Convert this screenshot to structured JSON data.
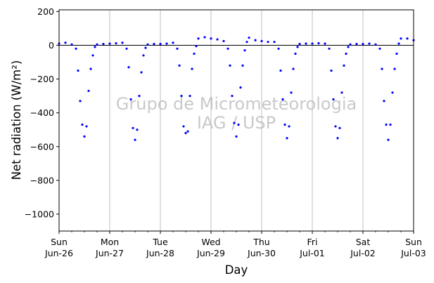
{
  "chart_data": {
    "type": "scatter",
    "xlabel": "Day",
    "ylabel": "Net radiation (W/m²)",
    "ylim": [
      -1100,
      210
    ],
    "xlim": [
      "2022-06-26",
      "2022-07-03"
    ],
    "yticks": [
      200,
      0,
      -200,
      -400,
      -600,
      -800,
      -1000
    ],
    "ytick_labels": [
      "200",
      "0",
      "−200",
      "−400",
      "−600",
      "−800",
      "−1000"
    ],
    "xticks": [
      {
        "date": "2022-06-26",
        "weekday": "Sun",
        "date_label": "Jun-26"
      },
      {
        "date": "2022-06-27",
        "weekday": "Mon",
        "date_label": "Jun-27"
      },
      {
        "date": "2022-06-28",
        "weekday": "Tue",
        "date_label": "Jun-28"
      },
      {
        "date": "2022-06-29",
        "weekday": "Wed",
        "date_label": "Jun-29"
      },
      {
        "date": "2022-06-30",
        "weekday": "Thu",
        "date_label": "Jun-30"
      },
      {
        "date": "2022-07-01",
        "weekday": "Fri",
        "date_label": "Jul-01"
      },
      {
        "date": "2022-07-02",
        "weekday": "Sat",
        "date_label": "Jul-02"
      },
      {
        "date": "2022-07-03",
        "weekday": "Sun",
        "date_label": "Jul-03"
      }
    ],
    "grid": "vertical at major day ticks",
    "zero_line": true,
    "watermark": [
      "Grupo de Micrometeorologia",
      "IAG / USP"
    ],
    "series": [
      {
        "color": "#0000ff",
        "x": [
          "2022-06-26 00:00",
          "2022-06-26 03:00",
          "2022-06-26 06:00",
          "2022-06-26 08:00",
          "2022-06-26 09:00",
          "2022-06-26 10:00",
          "2022-06-26 11:00",
          "2022-06-26 12:00",
          "2022-06-26 13:00",
          "2022-06-26 14:00",
          "2022-06-26 15:00",
          "2022-06-26 16:00",
          "2022-06-26 17:00",
          "2022-06-26 18:00",
          "2022-06-26 21:00",
          "2022-06-27 00:00",
          "2022-06-27 03:00",
          "2022-06-27 06:00",
          "2022-06-27 08:00",
          "2022-06-27 09:00",
          "2022-06-27 10:00",
          "2022-06-27 11:00",
          "2022-06-27 12:00",
          "2022-06-27 13:00",
          "2022-06-27 14:00",
          "2022-06-27 15:00",
          "2022-06-27 16:00",
          "2022-06-27 17:00",
          "2022-06-27 18:00",
          "2022-06-27 21:00",
          "2022-06-28 00:00",
          "2022-06-28 03:00",
          "2022-06-28 06:00",
          "2022-06-28 08:00",
          "2022-06-28 09:00",
          "2022-06-28 10:00",
          "2022-06-28 11:00",
          "2022-06-28 12:00",
          "2022-06-28 13:00",
          "2022-06-28 14:00",
          "2022-06-28 15:00",
          "2022-06-28 16:00",
          "2022-06-28 17:00",
          "2022-06-28 18:00",
          "2022-06-28 21:00",
          "2022-06-29 00:00",
          "2022-06-29 03:00",
          "2022-06-29 06:00",
          "2022-06-29 08:00",
          "2022-06-29 09:00",
          "2022-06-29 10:00",
          "2022-06-29 11:00",
          "2022-06-29 12:00",
          "2022-06-29 13:00",
          "2022-06-29 14:00",
          "2022-06-29 15:00",
          "2022-06-29 16:00",
          "2022-06-29 17:00",
          "2022-06-29 18:00",
          "2022-06-29 21:00",
          "2022-06-30 00:00",
          "2022-06-30 03:00",
          "2022-06-30 06:00",
          "2022-06-30 08:00",
          "2022-06-30 09:00",
          "2022-06-30 10:00",
          "2022-06-30 11:00",
          "2022-06-30 12:00",
          "2022-06-30 13:00",
          "2022-06-30 14:00",
          "2022-06-30 15:00",
          "2022-06-30 16:00",
          "2022-06-30 17:00",
          "2022-06-30 18:00",
          "2022-06-30 21:00",
          "2022-07-01 00:00",
          "2022-07-01 03:00",
          "2022-07-01 06:00",
          "2022-07-01 08:00",
          "2022-07-01 09:00",
          "2022-07-01 10:00",
          "2022-07-01 11:00",
          "2022-07-01 12:00",
          "2022-07-01 13:00",
          "2022-07-01 14:00",
          "2022-07-01 15:00",
          "2022-07-01 16:00",
          "2022-07-01 17:00",
          "2022-07-01 18:00",
          "2022-07-01 21:00",
          "2022-07-02 00:00",
          "2022-07-02 03:00",
          "2022-07-02 06:00",
          "2022-07-02 08:00",
          "2022-07-02 09:00",
          "2022-07-02 10:00",
          "2022-07-02 11:00",
          "2022-07-02 12:00",
          "2022-07-02 13:00",
          "2022-07-02 14:00",
          "2022-07-02 15:00",
          "2022-07-02 16:00",
          "2022-07-02 17:00",
          "2022-07-02 18:00",
          "2022-07-02 21:00",
          "2022-07-03 00:00"
        ],
        "y": [
          10,
          15,
          5,
          -20,
          -150,
          -330,
          -470,
          -540,
          -480,
          -270,
          -140,
          -60,
          -10,
          5,
          8,
          10,
          12,
          15,
          -20,
          -130,
          -320,
          -490,
          -560,
          -500,
          -300,
          -160,
          -60,
          -15,
          5,
          8,
          8,
          10,
          15,
          -20,
          -120,
          -300,
          -480,
          -520,
          -510,
          -300,
          -140,
          -50,
          -5,
          40,
          48,
          40,
          35,
          25,
          -20,
          -120,
          -300,
          -460,
          -540,
          -470,
          -250,
          -120,
          -30,
          20,
          45,
          30,
          25,
          20,
          20,
          -20,
          -150,
          -320,
          -470,
          -550,
          -480,
          -280,
          -140,
          -50,
          -10,
          8,
          10,
          10,
          12,
          10,
          -20,
          -150,
          -320,
          -480,
          -550,
          -490,
          -280,
          -120,
          -50,
          -10,
          5,
          8,
          8,
          10,
          5,
          -20,
          -140,
          -330,
          -470,
          -560,
          -470,
          -280,
          -140,
          -50,
          10,
          40,
          40,
          30
        ]
      }
    ]
  }
}
